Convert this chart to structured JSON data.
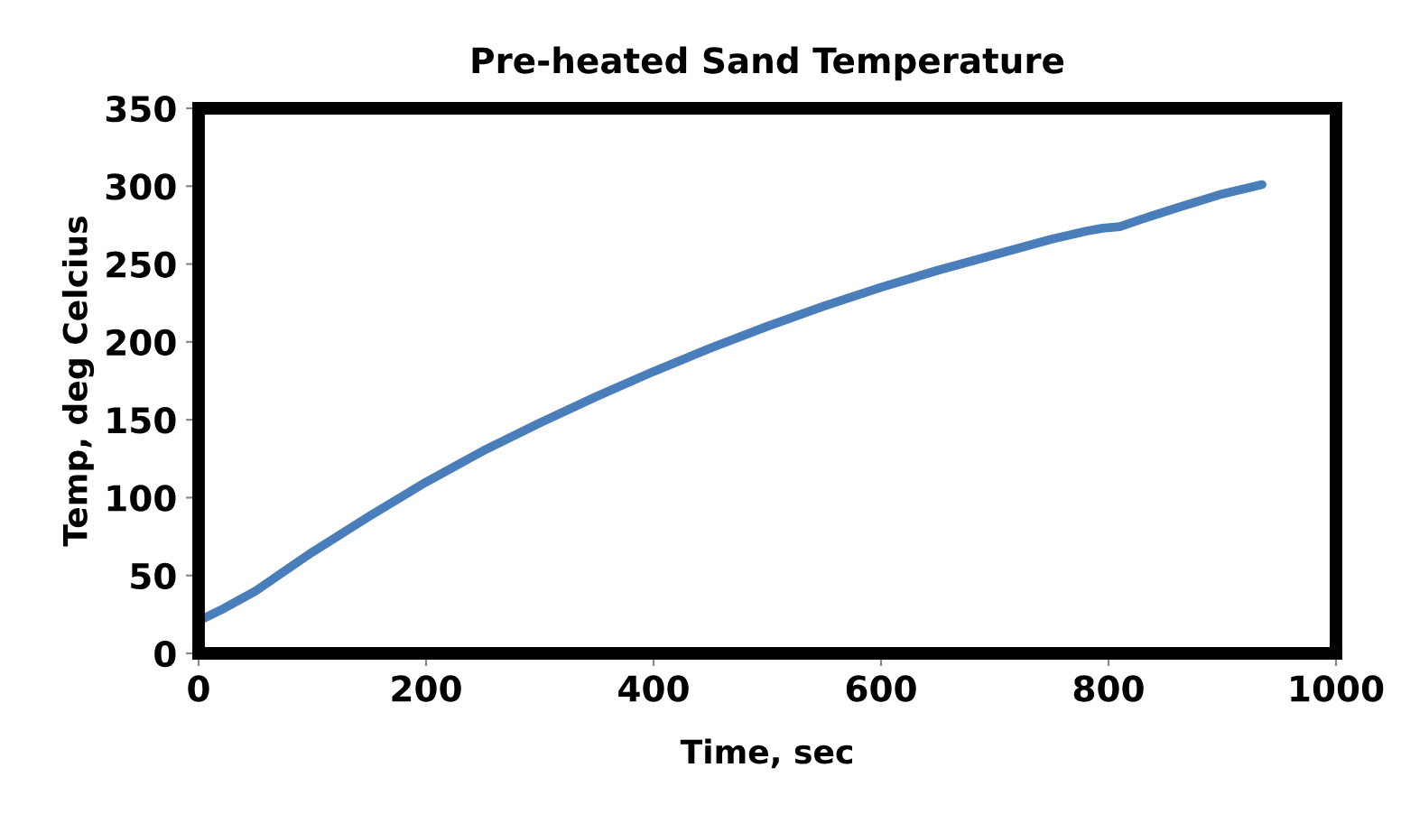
{
  "chart_data": {
    "type": "line",
    "title": "Pre-heated Sand Temperature",
    "xlabel": "Time, sec",
    "ylabel": "Temp, deg Celcius",
    "series": [
      {
        "color": "#4a7ebb",
        "x": [
          3,
          20,
          50,
          80,
          100,
          150,
          200,
          250,
          300,
          350,
          400,
          450,
          500,
          550,
          600,
          650,
          700,
          750,
          780,
          795,
          810,
          830,
          860,
          900,
          935
        ],
        "values": [
          22,
          28,
          40,
          55,
          65,
          88,
          110,
          130,
          148,
          165,
          181,
          196,
          210,
          223,
          235,
          246,
          256,
          266,
          271,
          273,
          274,
          279,
          286,
          295,
          301
        ]
      }
    ],
    "xlim": [
      0,
      1000
    ],
    "xticks": [
      0,
      200,
      400,
      600,
      800,
      1000
    ],
    "ylim": [
      0,
      350
    ],
    "yticks": [
      0,
      50,
      100,
      150,
      200,
      250,
      300,
      350
    ],
    "grid": false,
    "legend": false,
    "marker": "none",
    "line_style": "solid"
  }
}
